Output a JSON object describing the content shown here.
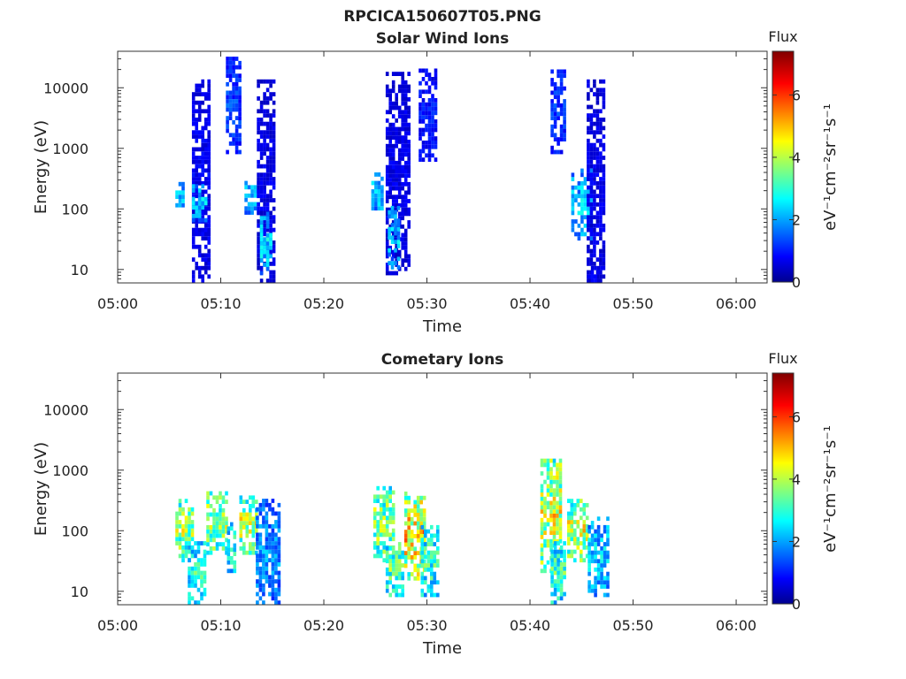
{
  "figure_title": "RPCICA150607T05.PNG",
  "chart_data": [
    {
      "type": "heatmap",
      "title": "Solar Wind Ions",
      "xlabel": "Time",
      "ylabel": "Energy (eV)",
      "x_ticks": [
        "05:00",
        "05:10",
        "05:20",
        "05:30",
        "05:40",
        "05:50",
        "06:00"
      ],
      "xlim": [
        "05:00",
        "06:03"
      ],
      "y_scale": "log",
      "y_ticks": [
        "10",
        "100",
        "1000",
        "10000"
      ],
      "ylim": [
        6,
        40000
      ],
      "colorbar": {
        "label": "Flux",
        "units": "eV⁻¹cm⁻²sr⁻¹s⁻¹",
        "ticks": [
          "0",
          "2",
          "4",
          "6"
        ],
        "range": [
          0,
          7.4
        ],
        "colormap": "jet"
      },
      "bursts": [
        {
          "start_min": 5.6,
          "end_min": 6.3,
          "e_low": 90,
          "e_high": 250,
          "flux": 2.6
        },
        {
          "start_min": 7.2,
          "end_min": 8.8,
          "e_low": 6,
          "e_high": 12000,
          "flux": 1.0
        },
        {
          "start_min": 7.2,
          "end_min": 8.6,
          "e_low": 60,
          "e_high": 250,
          "flux": 2.6
        },
        {
          "start_min": 10.5,
          "end_min": 11.8,
          "e_low": 800,
          "e_high": 30000,
          "flux": 1.6
        },
        {
          "start_min": 12.3,
          "end_min": 13.8,
          "e_low": 80,
          "e_high": 250,
          "flux": 2.7
        },
        {
          "start_min": 13.5,
          "end_min": 15.3,
          "e_low": 6,
          "e_high": 12000,
          "flux": 0.9
        },
        {
          "start_min": 13.8,
          "end_min": 15.0,
          "e_low": 8,
          "e_high": 80,
          "flux": 2.8
        },
        {
          "start_min": 24.6,
          "end_min": 25.8,
          "e_low": 80,
          "e_high": 400,
          "flux": 2.7
        },
        {
          "start_min": 26.0,
          "end_min": 28.2,
          "e_low": 8,
          "e_high": 16000,
          "flux": 0.9
        },
        {
          "start_min": 26.2,
          "end_min": 27.2,
          "e_low": 10,
          "e_high": 100,
          "flux": 2.6
        },
        {
          "start_min": 29.2,
          "end_min": 30.8,
          "e_low": 600,
          "e_high": 20000,
          "flux": 1.2
        },
        {
          "start_min": 42.0,
          "end_min": 43.3,
          "e_low": 800,
          "e_high": 20000,
          "flux": 1.5
        },
        {
          "start_min": 44.0,
          "end_min": 46.0,
          "e_low": 30,
          "e_high": 400,
          "flux": 2.7
        },
        {
          "start_min": 45.5,
          "end_min": 47.2,
          "e_low": 6,
          "e_high": 12000,
          "flux": 0.9
        },
        {
          "start_min": 45.6,
          "end_min": 46.8,
          "e_low": 6,
          "e_high": 11,
          "flux": 1.1
        }
      ]
    },
    {
      "type": "heatmap",
      "title": "Cometary Ions",
      "xlabel": "Time",
      "ylabel": "Energy (eV)",
      "x_ticks": [
        "05:00",
        "05:10",
        "05:20",
        "05:30",
        "05:40",
        "05:50",
        "06:00"
      ],
      "xlim": [
        "05:00",
        "06:03"
      ],
      "y_scale": "log",
      "y_ticks": [
        "10",
        "100",
        "1000",
        "10000"
      ],
      "ylim": [
        6,
        40000
      ],
      "colorbar": {
        "label": "Flux",
        "units": "eV⁻¹cm⁻²sr⁻¹s⁻¹",
        "ticks": [
          "0",
          "2",
          "4",
          "6"
        ],
        "range": [
          0,
          7.4
        ],
        "colormap": "jet"
      },
      "bursts": [
        {
          "start_min": 5.6,
          "end_min": 7.2,
          "e_low": 30,
          "e_high": 300,
          "flux": 4.4
        },
        {
          "start_min": 6.8,
          "end_min": 8.3,
          "e_low": 6,
          "e_high": 60,
          "flux": 3.4
        },
        {
          "start_min": 8.6,
          "end_min": 10.6,
          "e_low": 40,
          "e_high": 400,
          "flux": 4.6
        },
        {
          "start_min": 10.6,
          "end_min": 11.4,
          "e_low": 20,
          "e_high": 120,
          "flux": 3.6
        },
        {
          "start_min": 11.8,
          "end_min": 13.6,
          "e_low": 40,
          "e_high": 350,
          "flux": 4.7
        },
        {
          "start_min": 13.4,
          "end_min": 15.6,
          "e_low": 6,
          "e_high": 300,
          "flux": 2.3
        },
        {
          "start_min": 24.8,
          "end_min": 26.8,
          "e_low": 30,
          "e_high": 500,
          "flux": 4.4
        },
        {
          "start_min": 26.0,
          "end_min": 27.8,
          "e_low": 8,
          "e_high": 60,
          "flux": 4.0
        },
        {
          "start_min": 27.8,
          "end_min": 29.8,
          "e_low": 15,
          "e_high": 400,
          "flux": 5.4
        },
        {
          "start_min": 29.4,
          "end_min": 31.0,
          "e_low": 8,
          "e_high": 120,
          "flux": 3.6
        },
        {
          "start_min": 41.0,
          "end_min": 42.8,
          "e_low": 20,
          "e_high": 1500,
          "flux": 4.9
        },
        {
          "start_min": 42.0,
          "end_min": 43.2,
          "e_low": 6,
          "e_high": 60,
          "flux": 3.6
        },
        {
          "start_min": 43.6,
          "end_min": 45.6,
          "e_low": 30,
          "e_high": 300,
          "flux": 4.8
        },
        {
          "start_min": 45.6,
          "end_min": 47.4,
          "e_low": 8,
          "e_high": 150,
          "flux": 2.8
        }
      ]
    }
  ]
}
